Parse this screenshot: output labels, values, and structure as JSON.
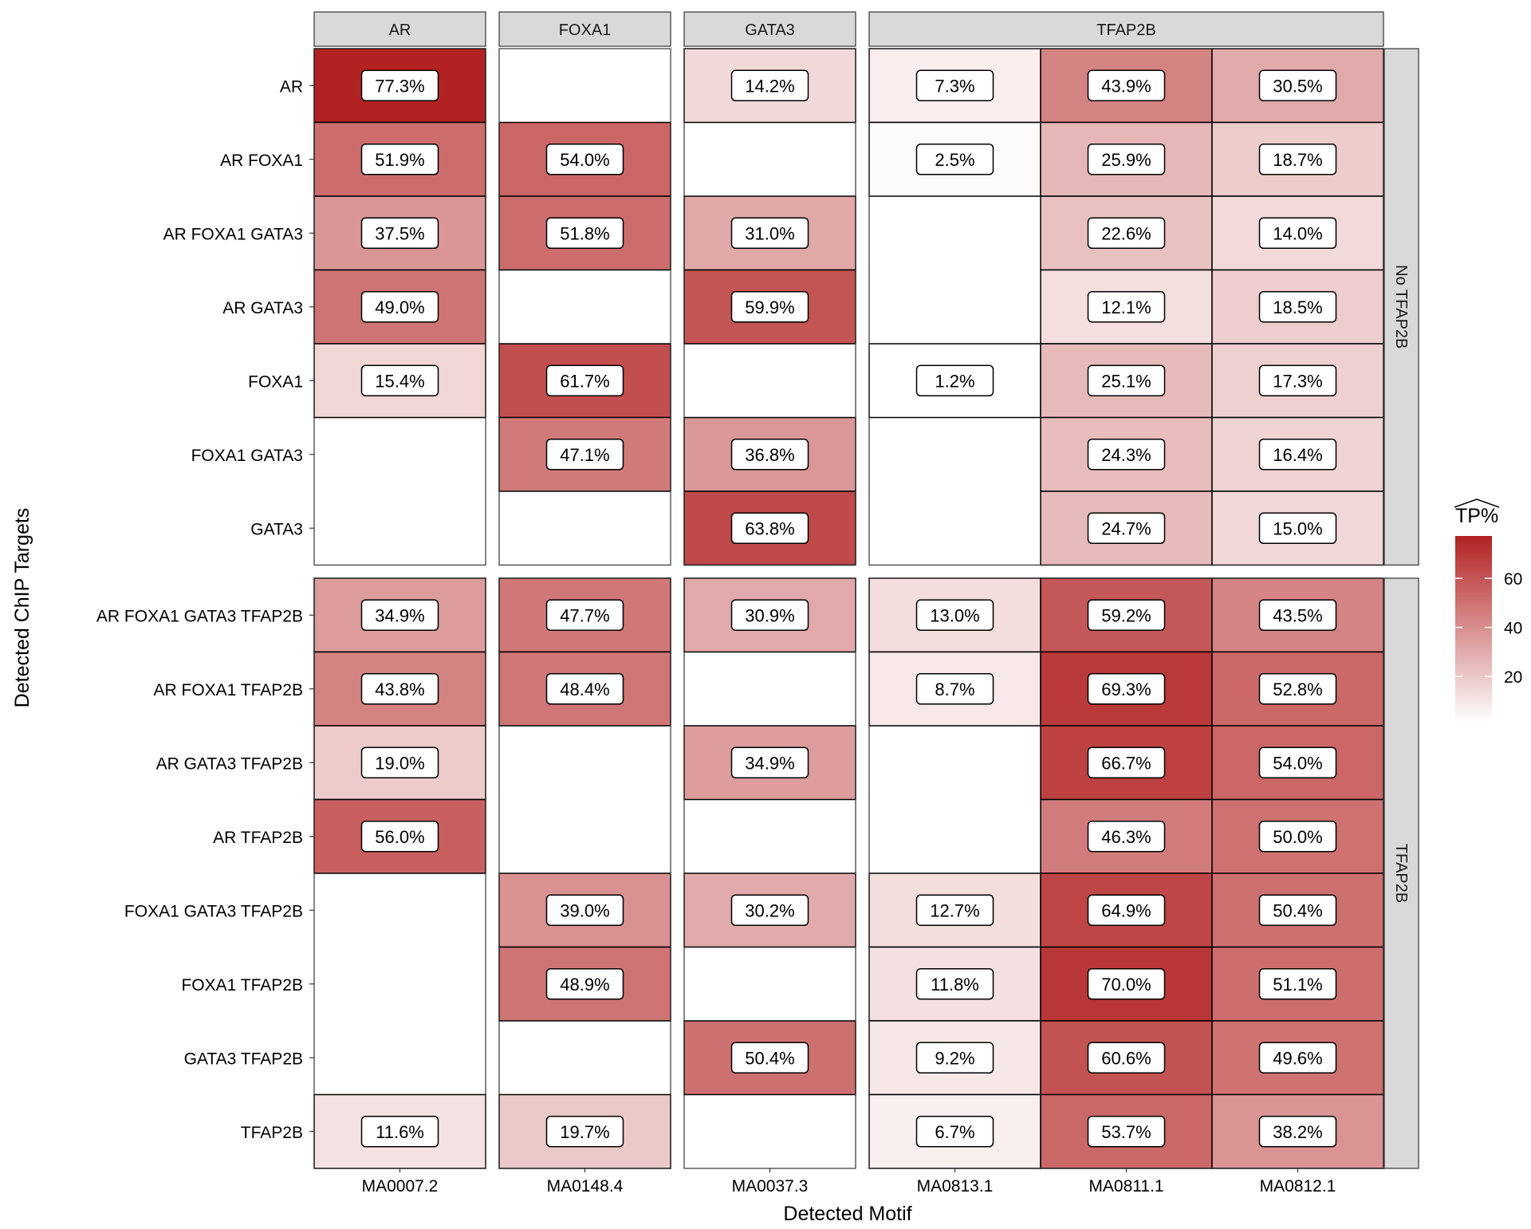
{
  "chart_data": {
    "type": "heatmap",
    "xlabel": "Detected Motif",
    "ylabel": "Detected ChIP Targets",
    "legend": {
      "title": "TP%",
      "position": "right",
      "ticks": [
        20,
        40,
        60
      ],
      "range": [
        1.2,
        77.3
      ],
      "low_color": "#FFFFFF",
      "high_color": "#B22222"
    },
    "column_facets": [
      {
        "label": "AR",
        "columns": [
          "MA0007.2"
        ]
      },
      {
        "label": "FOXA1",
        "columns": [
          "MA0148.4"
        ]
      },
      {
        "label": "GATA3",
        "columns": [
          "MA0037.3"
        ]
      },
      {
        "label": "TFAP2B",
        "columns": [
          "MA0813.1",
          "MA0811.1",
          "MA0812.1"
        ]
      }
    ],
    "row_facets": [
      {
        "label": "No TFAP2B",
        "rows": [
          {
            "label": "AR",
            "values": [
              77.3,
              null,
              14.2,
              7.3,
              43.9,
              30.5
            ]
          },
          {
            "label": "AR FOXA1",
            "values": [
              51.9,
              54.0,
              null,
              2.5,
              25.9,
              18.7
            ]
          },
          {
            "label": "AR FOXA1 GATA3",
            "values": [
              37.5,
              51.8,
              31.0,
              null,
              22.6,
              14.0
            ]
          },
          {
            "label": "AR GATA3",
            "values": [
              49.0,
              null,
              59.9,
              null,
              12.1,
              18.5
            ]
          },
          {
            "label": "FOXA1",
            "values": [
              15.4,
              61.7,
              null,
              1.2,
              25.1,
              17.3
            ]
          },
          {
            "label": "FOXA1 GATA3",
            "values": [
              null,
              47.1,
              36.8,
              null,
              24.3,
              16.4
            ]
          },
          {
            "label": "GATA3",
            "values": [
              null,
              null,
              63.8,
              null,
              24.7,
              15.0
            ]
          }
        ]
      },
      {
        "label": "TFAP2B",
        "rows": [
          {
            "label": "AR FOXA1 GATA3 TFAP2B",
            "values": [
              34.9,
              47.7,
              30.9,
              13.0,
              59.2,
              43.5
            ]
          },
          {
            "label": "AR FOXA1 TFAP2B",
            "values": [
              43.8,
              48.4,
              null,
              8.7,
              69.3,
              52.8
            ]
          },
          {
            "label": "AR GATA3 TFAP2B",
            "values": [
              19.0,
              null,
              34.9,
              null,
              66.7,
              54.0
            ]
          },
          {
            "label": "AR TFAP2B",
            "values": [
              56.0,
              null,
              null,
              null,
              46.3,
              50.0
            ]
          },
          {
            "label": "FOXA1 GATA3 TFAP2B",
            "values": [
              null,
              39.0,
              30.2,
              12.7,
              64.9,
              50.4
            ]
          },
          {
            "label": "FOXA1 TFAP2B",
            "values": [
              null,
              48.9,
              null,
              11.8,
              70.0,
              51.1
            ]
          },
          {
            "label": "GATA3 TFAP2B",
            "values": [
              null,
              null,
              50.4,
              9.2,
              60.6,
              49.6
            ]
          },
          {
            "label": "TFAP2B",
            "values": [
              11.6,
              19.7,
              null,
              6.7,
              53.7,
              38.2
            ]
          }
        ]
      }
    ]
  }
}
